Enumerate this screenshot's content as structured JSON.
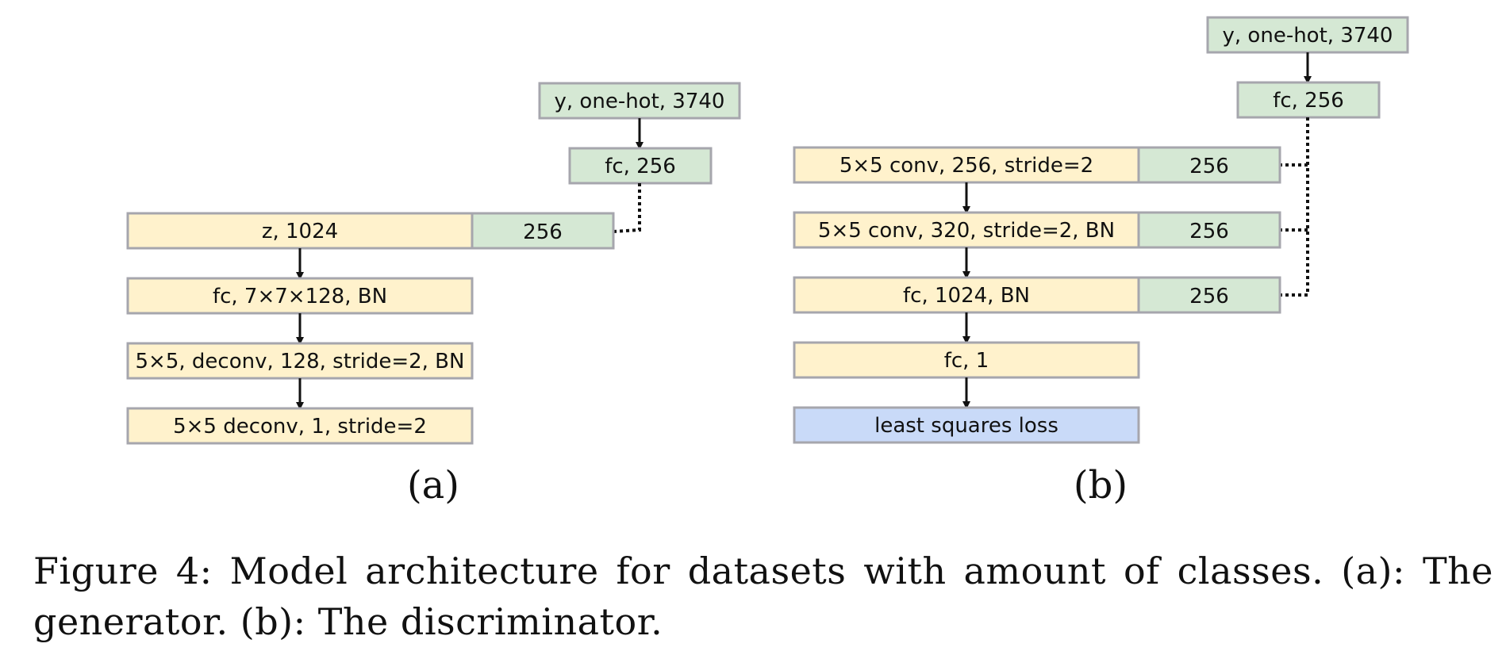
{
  "generator": {
    "label_input": "y, one-hot, 3740",
    "label_fc": "fc, 256",
    "label_z": "z, 1024",
    "label_concat": "256",
    "label_fc2": "fc, 7×7×128, BN",
    "label_deconv1": "5×5, deconv, 128, stride=2, BN",
    "label_deconv2": "5×5 deconv, 1, stride=2",
    "panel_label": "(a)"
  },
  "discriminator": {
    "label_input": "y, one-hot, 3740",
    "label_fc": "fc, 256",
    "label_conv1": "5×5 conv, 256, stride=2",
    "label_conv1_concat": "256",
    "label_conv2": "5×5 conv, 320, stride=2, BN",
    "label_conv2_concat": "256",
    "label_fc1024": "fc, 1024, BN",
    "label_fc1024_concat": "256",
    "label_fc1": "fc, 1",
    "label_loss": "least squares loss",
    "panel_label": "(b)"
  },
  "caption": "Figure 4: Model architecture for datasets with amount of classes. (a): The generator. (b): The discriminator.",
  "colors": {
    "yellow_fill": "#fff2cc",
    "green_fill": "#d5e8d4",
    "blue_fill": "#c9daf8",
    "border": "#a6a6ad",
    "arrow": "#111111"
  }
}
